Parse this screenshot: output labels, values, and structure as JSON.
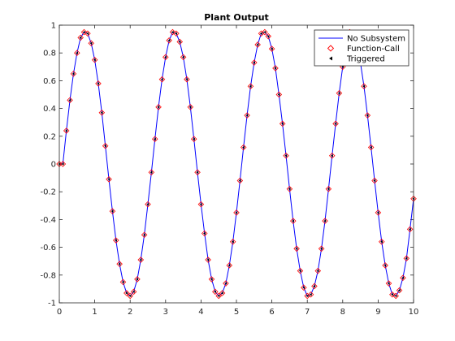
{
  "chart_data": {
    "type": "line",
    "title": "Plant Output",
    "xlabel": "",
    "ylabel": "",
    "xlim": [
      0,
      10
    ],
    "ylim": [
      -1,
      1
    ],
    "xticks": [
      "0",
      "1",
      "2",
      "3",
      "4",
      "5",
      "6",
      "7",
      "8",
      "9",
      "10"
    ],
    "yticks": [
      "-1",
      "-0.8",
      "-0.6",
      "-0.4",
      "-0.2",
      "0",
      "0.2",
      "0.4",
      "0.6",
      "0.8",
      "1"
    ],
    "grid": false,
    "legend_position": "top-right",
    "series": [
      {
        "name": "No Subsystem",
        "style": "line",
        "color": "#0000ff",
        "x": [
          0,
          0.1,
          0.2,
          0.3,
          0.4,
          0.5,
          0.6,
          0.7,
          0.8,
          0.9,
          1.0,
          1.1,
          1.2,
          1.3,
          1.4,
          1.5,
          1.6,
          1.7,
          1.8,
          1.9,
          2.0,
          2.1,
          2.2,
          2.3,
          2.4,
          2.5,
          2.6,
          2.7,
          2.8,
          2.9,
          3.0,
          3.1,
          3.2,
          3.3,
          3.4,
          3.5,
          3.6,
          3.7,
          3.8,
          3.9,
          4.0,
          4.1,
          4.2,
          4.3,
          4.4,
          4.5,
          4.6,
          4.7,
          4.8,
          4.9,
          5.0,
          5.1,
          5.2,
          5.3,
          5.4,
          5.5,
          5.6,
          5.7,
          5.8,
          5.9,
          6.0,
          6.1,
          6.2,
          6.3,
          6.4,
          6.5,
          6.6,
          6.7,
          6.8,
          6.9,
          7.0,
          7.1,
          7.2,
          7.3,
          7.4,
          7.5,
          7.6,
          7.7,
          7.8,
          7.9,
          8.0,
          8.1,
          8.2,
          8.3,
          8.4,
          8.5,
          8.6,
          8.7,
          8.8,
          8.9,
          9.0,
          9.1,
          9.2,
          9.3,
          9.4,
          9.5,
          9.6,
          9.7,
          9.8,
          9.9,
          10.0
        ],
        "y": [
          0,
          0,
          0.24,
          0.46,
          0.65,
          0.8,
          0.91,
          0.95,
          0.94,
          0.87,
          0.75,
          0.58,
          0.37,
          0.13,
          -0.11,
          -0.34,
          -0.55,
          -0.72,
          -0.85,
          -0.93,
          -0.95,
          -0.92,
          -0.83,
          -0.69,
          -0.51,
          -0.29,
          -0.06,
          0.18,
          0.41,
          0.61,
          0.77,
          0.89,
          0.95,
          0.94,
          0.88,
          0.77,
          0.61,
          0.41,
          0.18,
          -0.06,
          -0.29,
          -0.5,
          -0.69,
          -0.83,
          -0.92,
          -0.95,
          -0.93,
          -0.86,
          -0.73,
          -0.56,
          -0.35,
          -0.12,
          0.12,
          0.35,
          0.56,
          0.73,
          0.86,
          0.94,
          0.95,
          0.92,
          0.83,
          0.69,
          0.5,
          0.29,
          0.06,
          -0.18,
          -0.41,
          -0.61,
          -0.77,
          -0.89,
          -0.95,
          -0.94,
          -0.88,
          -0.77,
          -0.61,
          -0.41,
          -0.18,
          0.06,
          0.29,
          0.51,
          0.7,
          0.84,
          0.95,
          0.93,
          0.86,
          0.73,
          0.56,
          0.35,
          0.12,
          -0.12,
          -0.35,
          -0.56,
          -0.73,
          -0.86,
          -0.94,
          -0.95,
          -0.91,
          -0.82,
          -0.68,
          -0.47,
          -0.25
        ]
      },
      {
        "name": "Function-Call",
        "style": "marker-diamond",
        "color": "#ff0000",
        "x": [
          0,
          0.1,
          0.2,
          0.3,
          0.4,
          0.5,
          0.6,
          0.7,
          0.8,
          0.9,
          1.0,
          1.1,
          1.2,
          1.3,
          1.4,
          1.5,
          1.6,
          1.7,
          1.8,
          1.9,
          2.0,
          2.1,
          2.2,
          2.3,
          2.4,
          2.5,
          2.6,
          2.7,
          2.8,
          2.9,
          3.0,
          3.1,
          3.2,
          3.3,
          3.4,
          3.5,
          3.6,
          3.7,
          3.8,
          3.9,
          4.0,
          4.1,
          4.2,
          4.3,
          4.4,
          4.5,
          4.6,
          4.7,
          4.8,
          4.9,
          5.0,
          5.1,
          5.2,
          5.3,
          5.4,
          5.5,
          5.6,
          5.7,
          5.8,
          5.9,
          6.0,
          6.1,
          6.2,
          6.3,
          6.4,
          6.5,
          6.6,
          6.7,
          6.8,
          6.9,
          7.0,
          7.1,
          7.2,
          7.3,
          7.4,
          7.5,
          7.6,
          7.7,
          7.8,
          7.9,
          8.0,
          8.1,
          8.2,
          8.3,
          8.4,
          8.5,
          8.6,
          8.7,
          8.8,
          8.9,
          9.0,
          9.1,
          9.2,
          9.3,
          9.4,
          9.5,
          9.6,
          9.7,
          9.8,
          9.9,
          10.0
        ],
        "y": [
          0,
          0,
          0.24,
          0.46,
          0.65,
          0.8,
          0.91,
          0.95,
          0.94,
          0.87,
          0.75,
          0.58,
          0.37,
          0.13,
          -0.11,
          -0.34,
          -0.55,
          -0.72,
          -0.85,
          -0.93,
          -0.95,
          -0.92,
          -0.83,
          -0.69,
          -0.51,
          -0.29,
          -0.06,
          0.18,
          0.41,
          0.61,
          0.77,
          0.89,
          0.95,
          0.94,
          0.88,
          0.77,
          0.61,
          0.41,
          0.18,
          -0.06,
          -0.29,
          -0.5,
          -0.69,
          -0.83,
          -0.92,
          -0.95,
          -0.93,
          -0.86,
          -0.73,
          -0.56,
          -0.35,
          -0.12,
          0.12,
          0.35,
          0.56,
          0.73,
          0.86,
          0.94,
          0.95,
          0.92,
          0.83,
          0.69,
          0.5,
          0.29,
          0.06,
          -0.18,
          -0.41,
          -0.61,
          -0.77,
          -0.89,
          -0.95,
          -0.94,
          -0.88,
          -0.77,
          -0.61,
          -0.41,
          -0.18,
          0.06,
          0.29,
          0.51,
          0.7,
          0.84,
          0.95,
          0.93,
          0.86,
          0.73,
          0.56,
          0.35,
          0.12,
          -0.12,
          -0.35,
          -0.56,
          -0.73,
          -0.86,
          -0.94,
          -0.95,
          -0.91,
          -0.82,
          -0.68,
          -0.47,
          -0.25
        ]
      },
      {
        "name": "Triggered",
        "style": "marker-triangle",
        "color": "#000000",
        "x": [
          0,
          0.1,
          0.2,
          0.3,
          0.4,
          0.5,
          0.6,
          0.7,
          0.8,
          0.9,
          1.0,
          1.1,
          1.2,
          1.3,
          1.4,
          1.5,
          1.6,
          1.7,
          1.8,
          1.9,
          2.0,
          2.1,
          2.2,
          2.3,
          2.4,
          2.5,
          2.6,
          2.7,
          2.8,
          2.9,
          3.0,
          3.1,
          3.2,
          3.3,
          3.4,
          3.5,
          3.6,
          3.7,
          3.8,
          3.9,
          4.0,
          4.1,
          4.2,
          4.3,
          4.4,
          4.5,
          4.6,
          4.7,
          4.8,
          4.9,
          5.0,
          5.1,
          5.2,
          5.3,
          5.4,
          5.5,
          5.6,
          5.7,
          5.8,
          5.9,
          6.0,
          6.1,
          6.2,
          6.3,
          6.4,
          6.5,
          6.6,
          6.7,
          6.8,
          6.9,
          7.0,
          7.1,
          7.2,
          7.3,
          7.4,
          7.5,
          7.6,
          7.7,
          7.8,
          7.9,
          8.0,
          8.1,
          8.2,
          8.3,
          8.4,
          8.5,
          8.6,
          8.7,
          8.8,
          8.9,
          9.0,
          9.1,
          9.2,
          9.3,
          9.4,
          9.5,
          9.6,
          9.7,
          9.8,
          9.9,
          10.0
        ],
        "y": [
          0,
          0,
          0.24,
          0.46,
          0.65,
          0.8,
          0.91,
          0.95,
          0.94,
          0.87,
          0.75,
          0.58,
          0.37,
          0.13,
          -0.11,
          -0.34,
          -0.55,
          -0.72,
          -0.85,
          -0.93,
          -0.95,
          -0.92,
          -0.83,
          -0.69,
          -0.51,
          -0.29,
          -0.06,
          0.18,
          0.41,
          0.61,
          0.77,
          0.89,
          0.95,
          0.94,
          0.88,
          0.77,
          0.61,
          0.41,
          0.18,
          -0.06,
          -0.29,
          -0.5,
          -0.69,
          -0.83,
          -0.92,
          -0.95,
          -0.93,
          -0.86,
          -0.73,
          -0.56,
          -0.35,
          -0.12,
          0.12,
          0.35,
          0.56,
          0.73,
          0.86,
          0.94,
          0.95,
          0.92,
          0.83,
          0.69,
          0.5,
          0.29,
          0.06,
          -0.18,
          -0.41,
          -0.61,
          -0.77,
          -0.89,
          -0.95,
          -0.94,
          -0.88,
          -0.77,
          -0.61,
          -0.41,
          -0.18,
          0.06,
          0.29,
          0.51,
          0.7,
          0.84,
          0.95,
          0.93,
          0.86,
          0.73,
          0.56,
          0.35,
          0.12,
          -0.12,
          -0.35,
          -0.56,
          -0.73,
          -0.86,
          -0.94,
          -0.95,
          -0.91,
          -0.82,
          -0.68,
          -0.47,
          -0.25
        ]
      }
    ]
  }
}
